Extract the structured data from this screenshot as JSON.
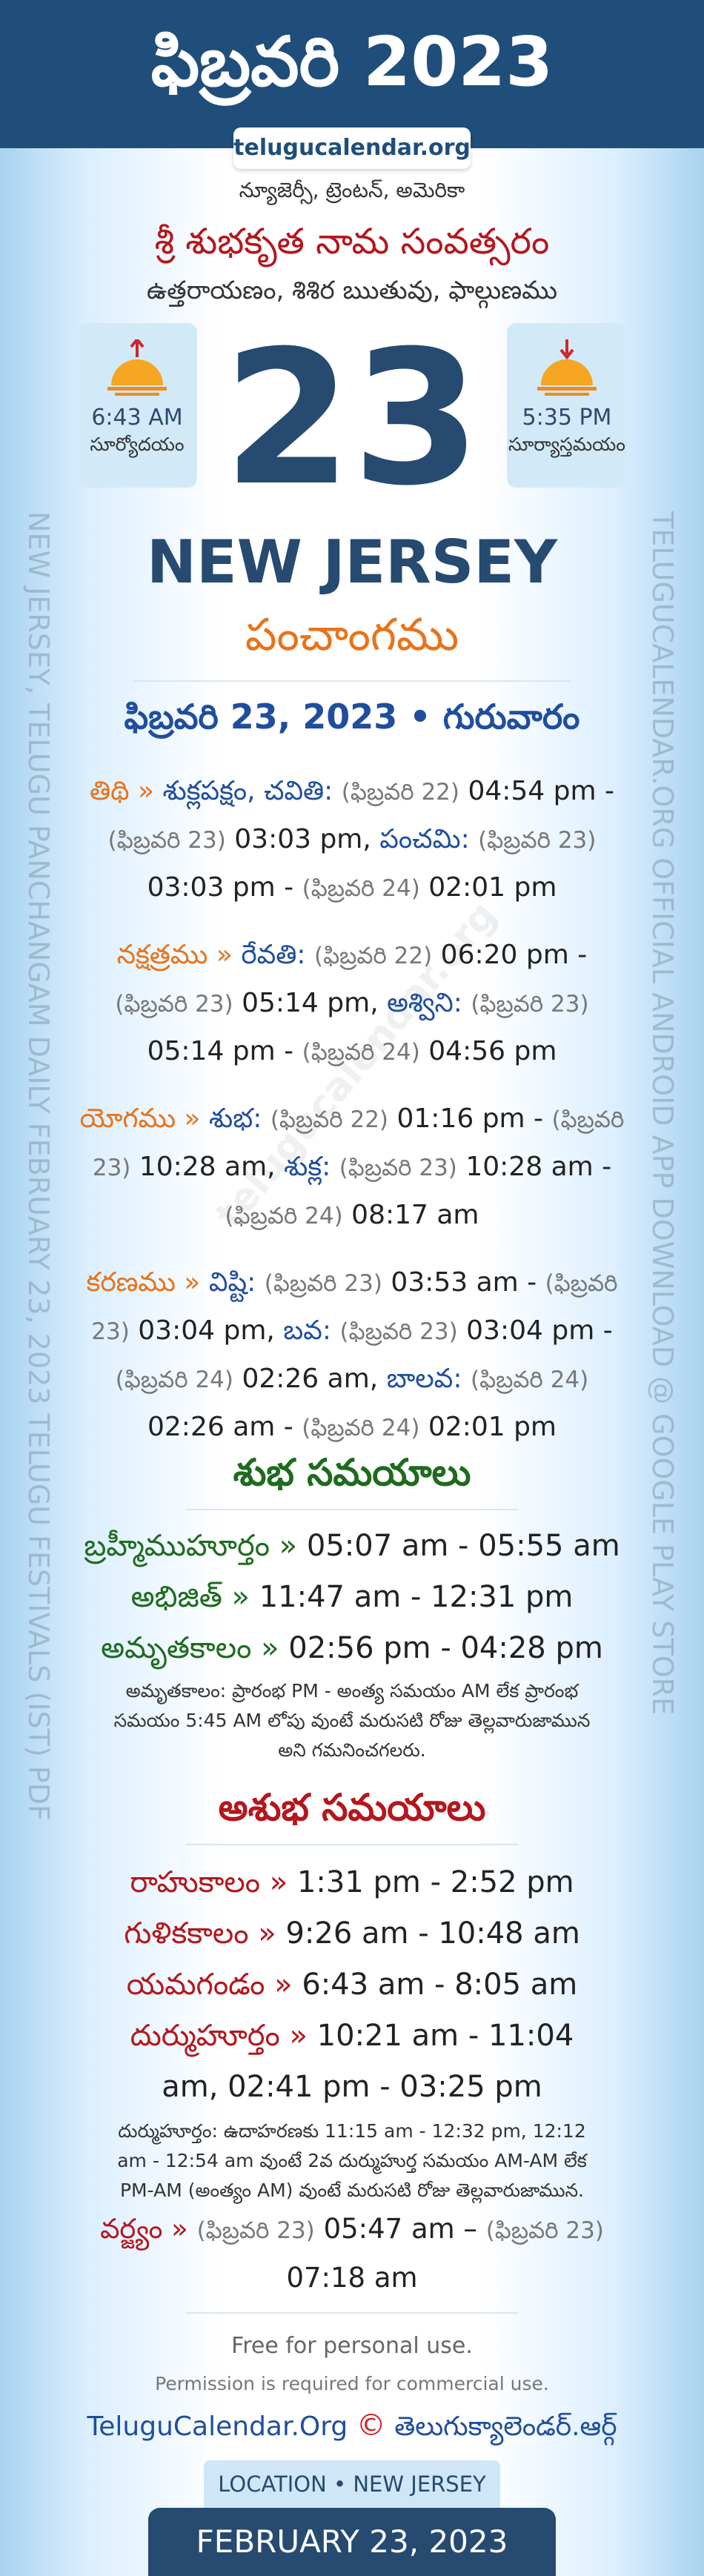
{
  "header": {
    "title": "ఫిబ్రవరి 2023",
    "site": "telugucalendar.org",
    "location": "న్యూజెర్సీ, ట్రెంటన్, అమెరికా",
    "year_name": "శ్రీ శుభకృత నామ సంవత్సరం",
    "season": "ఉత్తరాయణం, శిశిర ఋతువు, ఫాల్గుణము"
  },
  "sun": {
    "sunrise_time": "6:43 AM",
    "sunrise_label": "సూర్యోదయం",
    "sunset_time": "5:35 PM",
    "sunset_label": "సూర్యాస్తమయం"
  },
  "day": "23",
  "city": "NEW JERSEY",
  "panchangam_title": "పంచాంగము",
  "date_line": "ఫిబ్రవరి 23, 2023 • గురువారం",
  "panchangam": [
    {
      "label": "తిథి »",
      "prefix": "శుక్లపక్షం,",
      "items": [
        {
          "name": "చవితి:",
          "from_date": "(ఫిబ్రవరి 22)",
          "from_time": "04:54 pm -",
          "to_date": "(ఫిబ్రవరి 23)",
          "to_time": "03:03 pm,"
        },
        {
          "name": "పంచమి:",
          "from_date": "(ఫిబ్రవరి 23)",
          "from_time": "03:03 pm -",
          "to_date": "(ఫిబ్రవరి 24)",
          "to_time": "02:01 pm"
        }
      ]
    },
    {
      "label": "నక్షత్రము »",
      "items": [
        {
          "name": "రేవతి:",
          "from_date": "(ఫిబ్రవరి 22)",
          "from_time": "06:20 pm -",
          "to_date": "(ఫిబ్రవరి 23)",
          "to_time": "05:14 pm,"
        },
        {
          "name": "అశ్విని:",
          "from_date": "(ఫిబ్రవరి 23)",
          "from_time": "05:14 pm -",
          "to_date": "(ఫిబ్రవరి 24)",
          "to_time": "04:56 pm"
        }
      ]
    },
    {
      "label": "యోగము »",
      "items": [
        {
          "name": "శుభ:",
          "from_date": "(ఫిబ్రవరి 22)",
          "from_time": "01:16 pm -",
          "to_date": "(ఫిబ్రవరి 23)",
          "to_time": "10:28 am,"
        },
        {
          "name": "శుక్ల:",
          "from_date": "(ఫిబ్రవరి 23)",
          "from_time": "10:28 am -",
          "to_date": "(ఫిబ్రవరి 24)",
          "to_time": "08:17 am"
        }
      ]
    },
    {
      "label": "కరణము »",
      "items": [
        {
          "name": "విష్టి:",
          "from_date": "(ఫిబ్రవరి 23)",
          "from_time": "03:53 am -",
          "to_date": "(ఫిబ్రవరి 23)",
          "to_time": "03:04 pm,"
        },
        {
          "name": "బవ:",
          "from_date": "(ఫిబ్రవరి 23)",
          "from_time": "03:04 pm -",
          "to_date": "(ఫిబ్రవరి 24)",
          "to_time": "02:26 am,"
        },
        {
          "name": "బాలవ:",
          "from_date": "(ఫిబ్రవరి 24)",
          "from_time": "02:26 am -",
          "to_date": "(ఫిబ్రవరి 24)",
          "to_time": "02:01 pm"
        }
      ]
    }
  ],
  "shubha": {
    "title": "శుభ సమయాలు",
    "items": [
      {
        "label": "బ్రహ్మీముహూర్తం »",
        "time": "05:07 am - 05:55 am"
      },
      {
        "label": "అభిజిత్ »",
        "time": "11:47 am - 12:31 pm"
      },
      {
        "label": "అమృతకాలం »",
        "time": "02:56 pm - 04:28 pm"
      }
    ],
    "note": "అమృతకాలం: ప్రారంభ PM - అంత్య సమయం AM లేక ప్రారంభ సమయం 5:45 AM లోపు వుంటే మరుసటి రోజు తెల్లవారుజామున అని గమనించగలరు."
  },
  "ashubha": {
    "title": "అశుభ సమయాలు",
    "items": [
      {
        "label": "రాహుకాలం »",
        "time": "1:31 pm - 2:52 pm"
      },
      {
        "label": "గుళికకాలం »",
        "time": "9:26 am - 10:48 am"
      },
      {
        "label": "యమగండం »",
        "time": "6:43 am - 8:05 am"
      },
      {
        "label": "దుర్ముహూర్తం »",
        "time": "10:21 am - 11:04 am, 02:41 pm - 03:25 pm"
      }
    ],
    "note": "దుర్ముహూర్తం: ఉదాహరణకు 11:15 am - 12:32 pm, 12:12 am - 12:54 am వుంటే 2వ దుర్ముహుర్త సమయం AM-AM లేక PM-AM (అంత్యం AM) వుంటే మరుసటి రోజు తెల్లవారుజామున."
  },
  "varjyam": {
    "label": "వర్జ్యం »",
    "from_date": "(ఫిబ్రవరి 23)",
    "from_time": "05:47 am –",
    "to_date": "(ఫిబ్రవరి 23)",
    "to_time": "07:18 am"
  },
  "footer": {
    "free": "Free for personal use.",
    "permission": "Permission is required for commercial use.",
    "site_en": "TeluguCalendar.Org",
    "copyright": "©",
    "site_te": "తెలుగుక్యాలెండర్.ఆర్గ్",
    "location_pill": "LOCATION • NEW JERSEY",
    "date_band": "FEBRUARY 23, 2023"
  },
  "side": {
    "left": "NEW JERSEY, TELUGU PANCHANGAM DAILY FEBRUARY 23, 2023 TELUGU FESTIVALS (IST) PDF",
    "right": "TELUGUCALENDAR.ORG OFFICIAL ANDROID APP DOWNLOAD @ GOOGLE PLAY STORE"
  },
  "watermark": "telugucalendar.org"
}
